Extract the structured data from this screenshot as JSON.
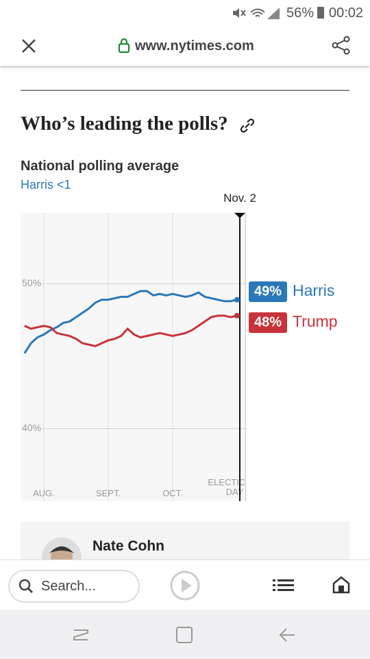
{
  "status_bar": {
    "battery": "56%",
    "time": "00:02"
  },
  "browser": {
    "url": "www.nytimes.com"
  },
  "article": {
    "heading": "Who’s leading the polls?",
    "author": "Nate Cohn"
  },
  "chart_data": {
    "type": "line",
    "title": "National polling average",
    "subtitle": "Harris <1",
    "annotation": "Nov. 2",
    "categories": [
      null,
      null,
      null,
      "AUG.",
      null,
      null,
      null,
      null,
      null,
      null,
      null,
      null,
      null,
      "SEPT.",
      null,
      null,
      null,
      null,
      null,
      null,
      null,
      null,
      null,
      "OCT.",
      null,
      null,
      null,
      null,
      null,
      null,
      null,
      null,
      null,
      null,
      "ELECTION DAY"
    ],
    "ylim": [
      35,
      54.9
    ],
    "yticks": [
      {
        "value": 40,
        "label": "40%"
      },
      {
        "value": 50,
        "label": "50%"
      }
    ],
    "grid": true,
    "series": [
      {
        "name": "Harris",
        "color": "#2a78b8",
        "end_label": "49%",
        "values": [
          45.2,
          45.9,
          46.3,
          46.5,
          46.8,
          47.0,
          47.3,
          47.4,
          47.7,
          48.0,
          48.3,
          48.7,
          48.9,
          48.9,
          49.0,
          49.1,
          49.1,
          49.3,
          49.5,
          49.5,
          49.2,
          49.3,
          49.2,
          49.3,
          49.2,
          49.1,
          49.2,
          49.4,
          49.1,
          49.0,
          48.9,
          48.8,
          48.8,
          48.9,
          null
        ]
      },
      {
        "name": "Trump",
        "color": "#c8333a",
        "end_label": "48%",
        "values": [
          47.1,
          46.9,
          47.0,
          47.1,
          47.0,
          46.6,
          46.5,
          46.4,
          46.2,
          45.9,
          45.8,
          45.7,
          45.9,
          46.1,
          46.2,
          46.4,
          46.9,
          46.5,
          46.3,
          46.4,
          46.5,
          46.6,
          46.5,
          46.4,
          46.5,
          46.6,
          46.8,
          47.1,
          47.4,
          47.7,
          47.8,
          47.8,
          47.7,
          47.8,
          null
        ]
      }
    ]
  },
  "toolbar": {
    "search_placeholder": "Search..."
  }
}
